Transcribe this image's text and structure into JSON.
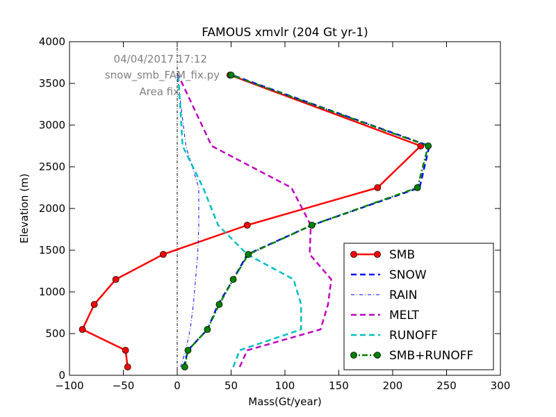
{
  "chart_data": {
    "type": "line",
    "title": "FAMOUS xmvlr (204 Gt yr-1)",
    "xlabel": "Mass(Gt/year)",
    "ylabel": "Elevation (m)",
    "xlim": [
      -100,
      300
    ],
    "ylim": [
      0,
      4000
    ],
    "xticks": [
      -100,
      -50,
      0,
      50,
      100,
      150,
      200,
      250,
      300
    ],
    "xtick_labels": [
      "−100",
      "−50",
      "0",
      "50",
      "100",
      "150",
      "200",
      "250",
      "300"
    ],
    "yticks": [
      0,
      500,
      1000,
      1500,
      2000,
      2500,
      3000,
      3500,
      4000
    ],
    "ytick_labels": [
      "0",
      "500",
      "1000",
      "1500",
      "2000",
      "2500",
      "3000",
      "3500",
      "4000"
    ],
    "grid": false,
    "legend_position": "lower-right",
    "annotations": [
      "04/04/2017 17:12",
      "snow_smb_FAM_fix.py",
      "Area fix"
    ],
    "series": [
      {
        "name": "SMB",
        "color": "#ff0000",
        "style": "solid-markers",
        "points": [
          [
            -46,
            100
          ],
          [
            -48,
            300
          ],
          [
            -88,
            550
          ],
          [
            -77,
            850
          ],
          [
            -57,
            1150
          ],
          [
            -13,
            1450
          ],
          [
            65,
            1800
          ],
          [
            186,
            2250
          ],
          [
            226,
            2750
          ],
          [
            49,
            3600
          ]
        ]
      },
      {
        "name": "SNOW",
        "color": "#0000ff",
        "style": "dashed",
        "points": [
          [
            6,
            100
          ],
          [
            10,
            300
          ],
          [
            28,
            550
          ],
          [
            38,
            850
          ],
          [
            52,
            1150
          ],
          [
            65,
            1450
          ],
          [
            125,
            1800
          ],
          [
            225,
            2250
          ],
          [
            234,
            2750
          ],
          [
            51,
            3600
          ]
        ]
      },
      {
        "name": "RAIN",
        "color": "#0000ff",
        "style": "dashdot",
        "points": [
          [
            3,
            100
          ],
          [
            8,
            300
          ],
          [
            12,
            550
          ],
          [
            15,
            850
          ],
          [
            17,
            1150
          ],
          [
            19,
            1450
          ],
          [
            20,
            1800
          ],
          [
            20,
            2250
          ],
          [
            8,
            2750
          ],
          [
            0,
            3600
          ]
        ]
      },
      {
        "name": "MELT",
        "color": "#bf00bf",
        "style": "dashed",
        "points": [
          [
            58,
            100
          ],
          [
            65,
            300
          ],
          [
            133,
            550
          ],
          [
            140,
            850
          ],
          [
            143,
            1150
          ],
          [
            123,
            1450
          ],
          [
            124,
            1800
          ],
          [
            106,
            2250
          ],
          [
            32,
            2750
          ],
          [
            1,
            3600
          ]
        ]
      },
      {
        "name": "RUNOFF",
        "color": "#00bfbf",
        "style": "dashed",
        "points": [
          [
            52,
            100
          ],
          [
            58,
            300
          ],
          [
            115,
            550
          ],
          [
            115,
            850
          ],
          [
            108,
            1150
          ],
          [
            65,
            1450
          ],
          [
            38,
            1800
          ],
          [
            24,
            2250
          ],
          [
            5,
            2750
          ],
          [
            1,
            3600
          ]
        ]
      },
      {
        "name": "SMB+RUNOFF",
        "color": "#008000",
        "style": "dashdot-markers",
        "points": [
          [
            7,
            100
          ],
          [
            10,
            300
          ],
          [
            28,
            550
          ],
          [
            39,
            850
          ],
          [
            52,
            1150
          ],
          [
            66,
            1450
          ],
          [
            125,
            1800
          ],
          [
            223,
            2250
          ],
          [
            233,
            2750
          ],
          [
            50,
            3600
          ]
        ]
      }
    ]
  },
  "zero_line": {
    "x": 0,
    "color": "#000000"
  }
}
